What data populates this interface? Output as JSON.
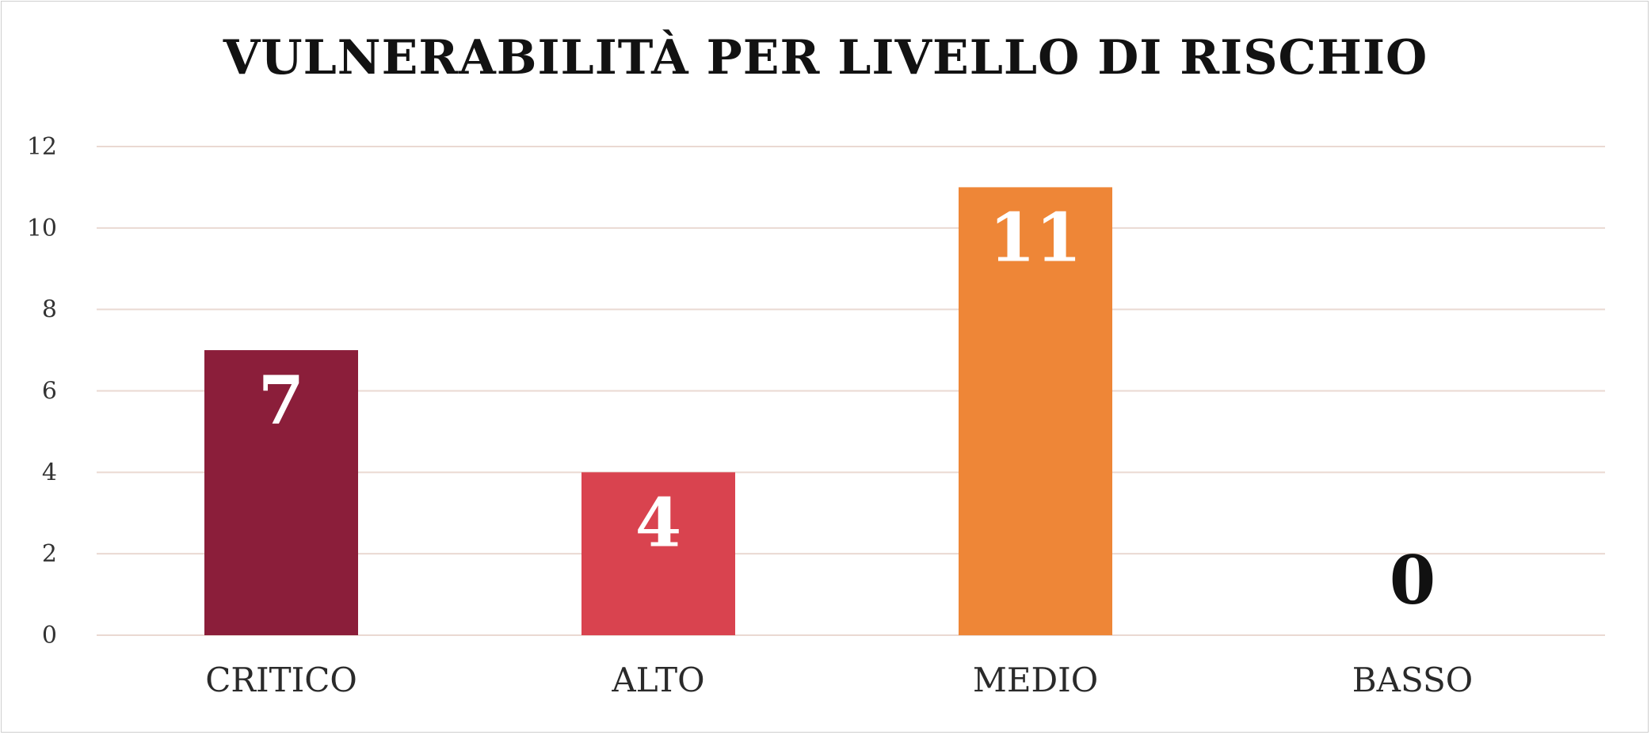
{
  "chart_data": {
    "type": "bar",
    "title": "VULNERABILITÀ PER LIVELLO DI RISCHIO",
    "xlabel": "",
    "ylabel": "",
    "categories": [
      "CRITICO",
      "ALTO",
      "MEDIO",
      "BASSO"
    ],
    "values": [
      7,
      4,
      11,
      0
    ],
    "data_labels": [
      "7",
      "4",
      "11",
      "0"
    ],
    "ylim": [
      0,
      12
    ],
    "yticks": [
      0,
      2,
      4,
      6,
      8,
      10,
      12
    ],
    "grid": true,
    "legend": "none",
    "colors": [
      "#8b1e3a",
      "#d9434f",
      "#ee8637",
      "#ffffff"
    ],
    "label_colors": [
      "#ffffff",
      "#ffffff",
      "#ffffff",
      "#111111"
    ],
    "gridline_color": "#ead9d2"
  }
}
